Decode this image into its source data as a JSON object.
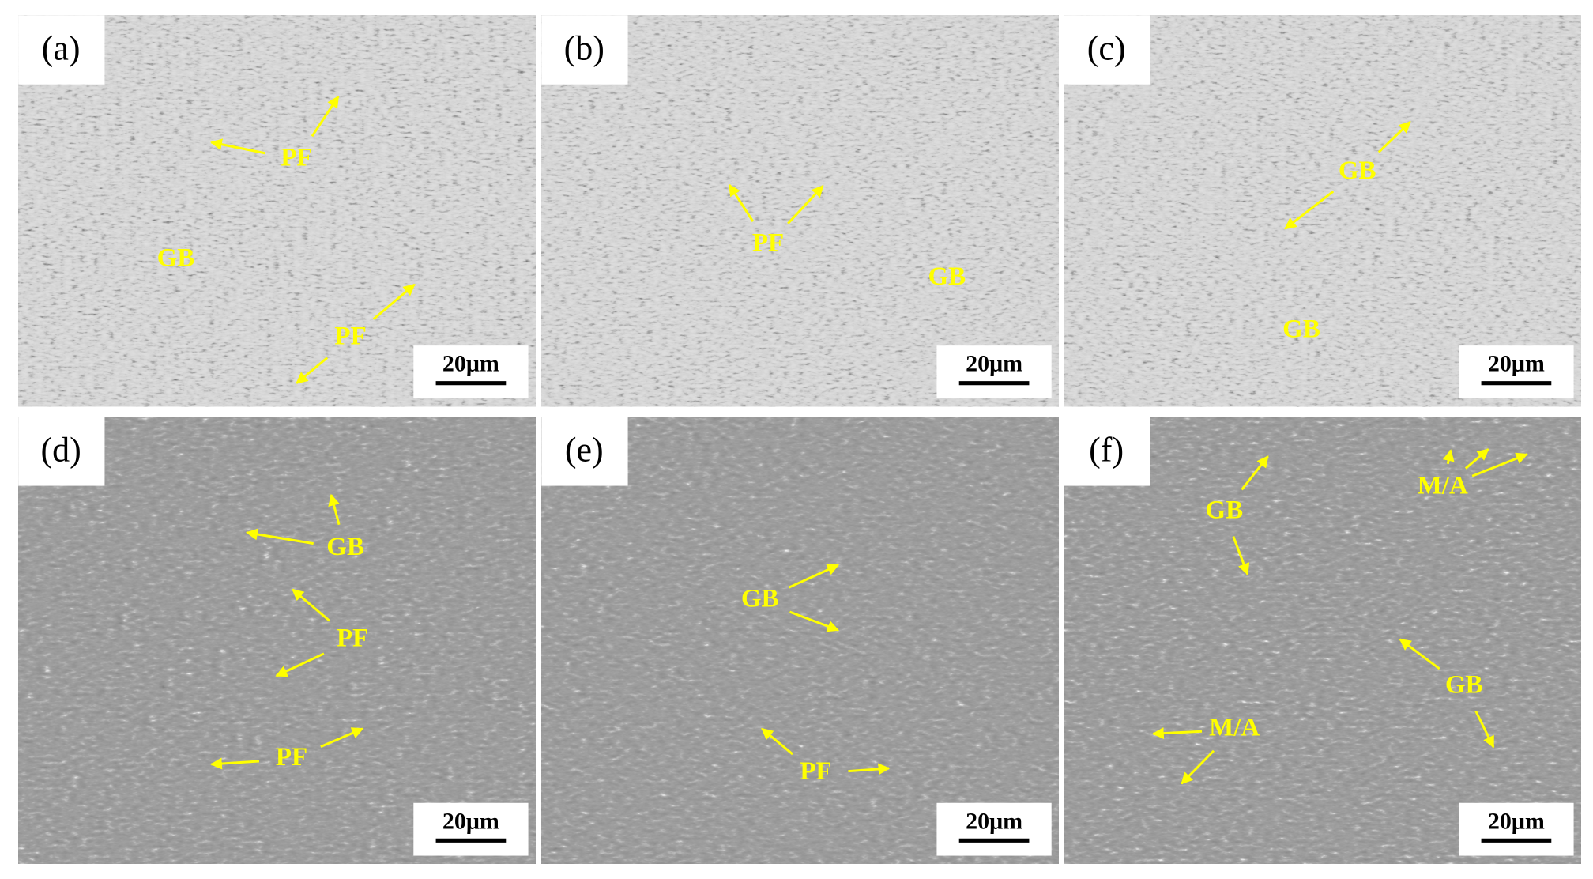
{
  "panels": [
    {
      "label": "(a)",
      "annotations": [
        "PF",
        "GB",
        "PF"
      ],
      "scale_bar": "20μm"
    },
    {
      "label": "(b)",
      "annotations": [
        "PF",
        "GB"
      ],
      "scale_bar": "20μm"
    },
    {
      "label": "(c)",
      "annotations": [
        "GB",
        "GB"
      ],
      "scale_bar": "20μm"
    },
    {
      "label": "(d)",
      "annotations": [
        "GB",
        "PF",
        "PF"
      ],
      "scale_bar": "20μm"
    },
    {
      "label": "(e)",
      "annotations": [
        "GB",
        "PF"
      ],
      "scale_bar": "20μm"
    },
    {
      "label": "(f)",
      "annotations": [
        "GB",
        "M/A",
        "GB",
        "M/A"
      ],
      "scale_bar": "20μm"
    }
  ]
}
